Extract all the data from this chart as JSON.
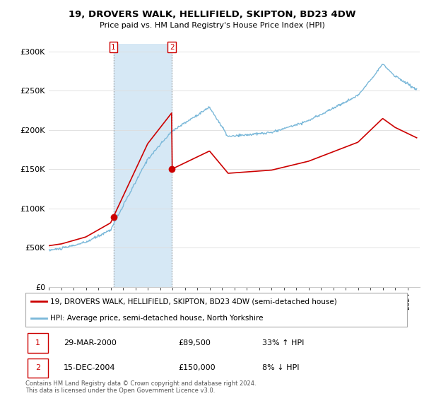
{
  "title": "19, DROVERS WALK, HELLIFIELD, SKIPTON, BD23 4DW",
  "subtitle": "Price paid vs. HM Land Registry's House Price Index (HPI)",
  "legend_line1": "19, DROVERS WALK, HELLIFIELD, SKIPTON, BD23 4DW (semi-detached house)",
  "legend_line2": "HPI: Average price, semi-detached house, North Yorkshire",
  "transaction1_date": "29-MAR-2000",
  "transaction1_price": 89500,
  "transaction1_pct": "33% ↑ HPI",
  "transaction2_date": "15-DEC-2004",
  "transaction2_price": 150000,
  "transaction2_pct": "8% ↓ HPI",
  "footer": "Contains HM Land Registry data © Crown copyright and database right 2024.\nThis data is licensed under the Open Government Licence v3.0.",
  "hpi_color": "#7ab8d9",
  "price_color": "#cc0000",
  "shading_color": "#d6e8f5",
  "ylim": [
    0,
    310000
  ],
  "yticks": [
    0,
    50000,
    100000,
    150000,
    200000,
    250000,
    300000
  ],
  "ytick_labels": [
    "£0",
    "£50K",
    "£100K",
    "£150K",
    "£200K",
    "£250K",
    "£300K"
  ],
  "t1_year": 2000.23,
  "t2_year": 2004.96
}
